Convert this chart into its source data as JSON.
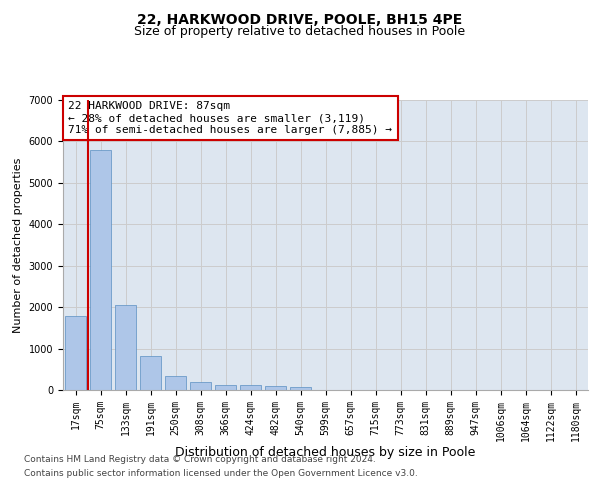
{
  "title": "22, HARKWOOD DRIVE, POOLE, BH15 4PE",
  "subtitle": "Size of property relative to detached houses in Poole",
  "xlabel": "Distribution of detached houses by size in Poole",
  "ylabel": "Number of detached properties",
  "categories": [
    "17sqm",
    "75sqm",
    "133sqm",
    "191sqm",
    "250sqm",
    "308sqm",
    "366sqm",
    "424sqm",
    "482sqm",
    "540sqm",
    "599sqm",
    "657sqm",
    "715sqm",
    "773sqm",
    "831sqm",
    "889sqm",
    "947sqm",
    "1006sqm",
    "1064sqm",
    "1122sqm",
    "1180sqm"
  ],
  "values": [
    1780,
    5800,
    2060,
    820,
    340,
    190,
    120,
    110,
    100,
    80,
    0,
    0,
    0,
    0,
    0,
    0,
    0,
    0,
    0,
    0,
    0
  ],
  "bar_color": "#aec6e8",
  "bar_edge_color": "#5a8fc2",
  "highlight_color": "#cc0000",
  "red_line_x": 0.5,
  "annotation_box_color": "#cc0000",
  "annotation_line1": "22 HARKWOOD DRIVE: 87sqm",
  "annotation_line2": "← 28% of detached houses are smaller (3,119)",
  "annotation_line3": "71% of semi-detached houses are larger (7,885) →",
  "ylim": [
    0,
    7000
  ],
  "yticks": [
    0,
    1000,
    2000,
    3000,
    4000,
    5000,
    6000,
    7000
  ],
  "grid_color": "#cccccc",
  "bg_color": "#dde6f0",
  "footer_line1": "Contains HM Land Registry data © Crown copyright and database right 2024.",
  "footer_line2": "Contains public sector information licensed under the Open Government Licence v3.0.",
  "title_fontsize": 10,
  "subtitle_fontsize": 9,
  "annotation_fontsize": 8,
  "tick_fontsize": 7,
  "ylabel_fontsize": 8,
  "xlabel_fontsize": 9
}
